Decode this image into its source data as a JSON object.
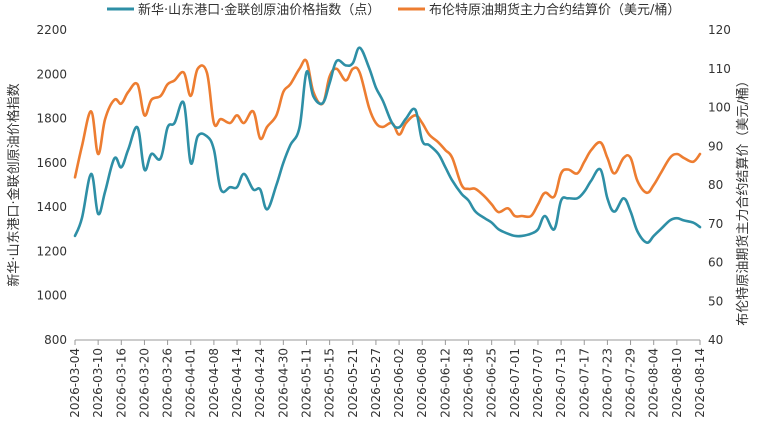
{
  "chart_data": {
    "type": "line",
    "title": "",
    "ylabel_left": "新华·山东港口·金联创原油价格指数",
    "ylabel_right": "布伦特原油期货主力合约结算价（美元/桶）",
    "ylim_left": [
      800,
      2200
    ],
    "ylim_right": [
      40,
      120
    ],
    "yticks_left": [
      "800",
      "1000",
      "1200",
      "1400",
      "1600",
      "1800",
      "2000",
      "2200"
    ],
    "yticks_right": [
      "40",
      "50",
      "60",
      "70",
      "80",
      "90",
      "100",
      "110",
      "120"
    ],
    "grid": false,
    "legend_position": "top",
    "x_tick_labels": [
      "2026-03-04",
      "2026-03-10",
      "2026-03-16",
      "2026-03-20",
      "2026-03-26",
      "2026-04-01",
      "2026-04-08",
      "2026-04-14",
      "2026-04-24",
      "2026-04-30",
      "2026-05-11",
      "2026-05-15",
      "2026-05-21",
      "2026-05-27",
      "2026-06-02",
      "2026-06-08",
      "2026-06-12",
      "2026-06-18",
      "2026-06-25",
      "2026-07-01",
      "2026-07-07",
      "2026-07-13",
      "2026-07-17",
      "2026-07-23",
      "2026-07-29",
      "2026-08-04",
      "2026-08-10",
      "2026-08-14"
    ],
    "series": [
      {
        "name": "新华·山东港口·金联创原油价格指数（点）",
        "axis": "left",
        "color": "#2E8FA6",
        "x": [
          0,
          0.3,
          0.7,
          1,
          1.3,
          1.7,
          2,
          2.3,
          2.7,
          3,
          3.3,
          3.7,
          4,
          4.3,
          4.7,
          5,
          5.3,
          5.7,
          6,
          6.3,
          6.7,
          7,
          7.3,
          7.7,
          8,
          8.3,
          8.7,
          9,
          9.3,
          9.7,
          10,
          10.3,
          10.7,
          11,
          11.3,
          11.7,
          12,
          12.3,
          12.7,
          13,
          13.3,
          13.7,
          14,
          14.3,
          14.7,
          15,
          15.3,
          15.7,
          16,
          16.3,
          16.7,
          17,
          17.3,
          17.7,
          18,
          18.3,
          18.7,
          19,
          19.3,
          19.7,
          20,
          20.3,
          20.7,
          21,
          21.3,
          21.7,
          22,
          22.3,
          22.7,
          23,
          23.3,
          23.7,
          24,
          24.3,
          24.7,
          25,
          25.3,
          25.7,
          26,
          26.3,
          26.7,
          27
        ],
        "values": [
          1270,
          1350,
          1550,
          1370,
          1470,
          1620,
          1580,
          1660,
          1760,
          1570,
          1640,
          1620,
          1760,
          1780,
          1870,
          1600,
          1720,
          1720,
          1660,
          1480,
          1490,
          1490,
          1550,
          1480,
          1480,
          1390,
          1500,
          1600,
          1680,
          1760,
          2010,
          1900,
          1870,
          1960,
          2060,
          2040,
          2050,
          2120,
          2030,
          1940,
          1880,
          1780,
          1760,
          1800,
          1840,
          1700,
          1680,
          1640,
          1580,
          1520,
          1460,
          1430,
          1380,
          1350,
          1330,
          1300,
          1280,
          1270,
          1270,
          1280,
          1300,
          1360,
          1300,
          1430,
          1440,
          1440,
          1470,
          1520,
          1570,
          1440,
          1380,
          1440,
          1380,
          1290,
          1240,
          1270,
          1300,
          1340,
          1350,
          1340,
          1330,
          1310
        ],
        "scale": "linear"
      },
      {
        "name": "布伦特原油期货主力合约结算价（美元/桶）",
        "axis": "right",
        "color": "#ED7D31",
        "x": [
          0,
          0.3,
          0.7,
          1,
          1.3,
          1.7,
          2,
          2.3,
          2.7,
          3,
          3.3,
          3.7,
          4,
          4.3,
          4.7,
          5,
          5.3,
          5.7,
          6,
          6.3,
          6.7,
          7,
          7.3,
          7.7,
          8,
          8.3,
          8.7,
          9,
          9.3,
          9.7,
          10,
          10.3,
          10.7,
          11,
          11.3,
          11.7,
          12,
          12.3,
          12.7,
          13,
          13.3,
          13.7,
          14,
          14.3,
          14.7,
          15,
          15.3,
          15.7,
          16,
          16.3,
          16.7,
          17,
          17.3,
          17.7,
          18,
          18.3,
          18.7,
          19,
          19.3,
          19.7,
          20,
          20.3,
          20.7,
          21,
          21.3,
          21.7,
          22,
          22.3,
          22.7,
          23,
          23.3,
          23.7,
          24,
          24.3,
          24.7,
          25,
          25.3,
          25.7,
          26,
          26.3,
          26.7,
          27
        ],
        "values": [
          82,
          90,
          99,
          88,
          97,
          102,
          101,
          104,
          106,
          98,
          102,
          103,
          106,
          107,
          109,
          103,
          110,
          109,
          96,
          97,
          96,
          98,
          96,
          99,
          92,
          95,
          98,
          104,
          106,
          110,
          112,
          104,
          101,
          108,
          110,
          107,
          110,
          109,
          100,
          96,
          95,
          96,
          93,
          96,
          98,
          96,
          93,
          91,
          89,
          87,
          80,
          79,
          79,
          77,
          75,
          73,
          74,
          72,
          72,
          72,
          75,
          78,
          77,
          83,
          84,
          83,
          86,
          89,
          91,
          87,
          83,
          87,
          87,
          81,
          78,
          80,
          83,
          87,
          88,
          87,
          86,
          88
        ],
        "scale": "linear"
      }
    ]
  }
}
